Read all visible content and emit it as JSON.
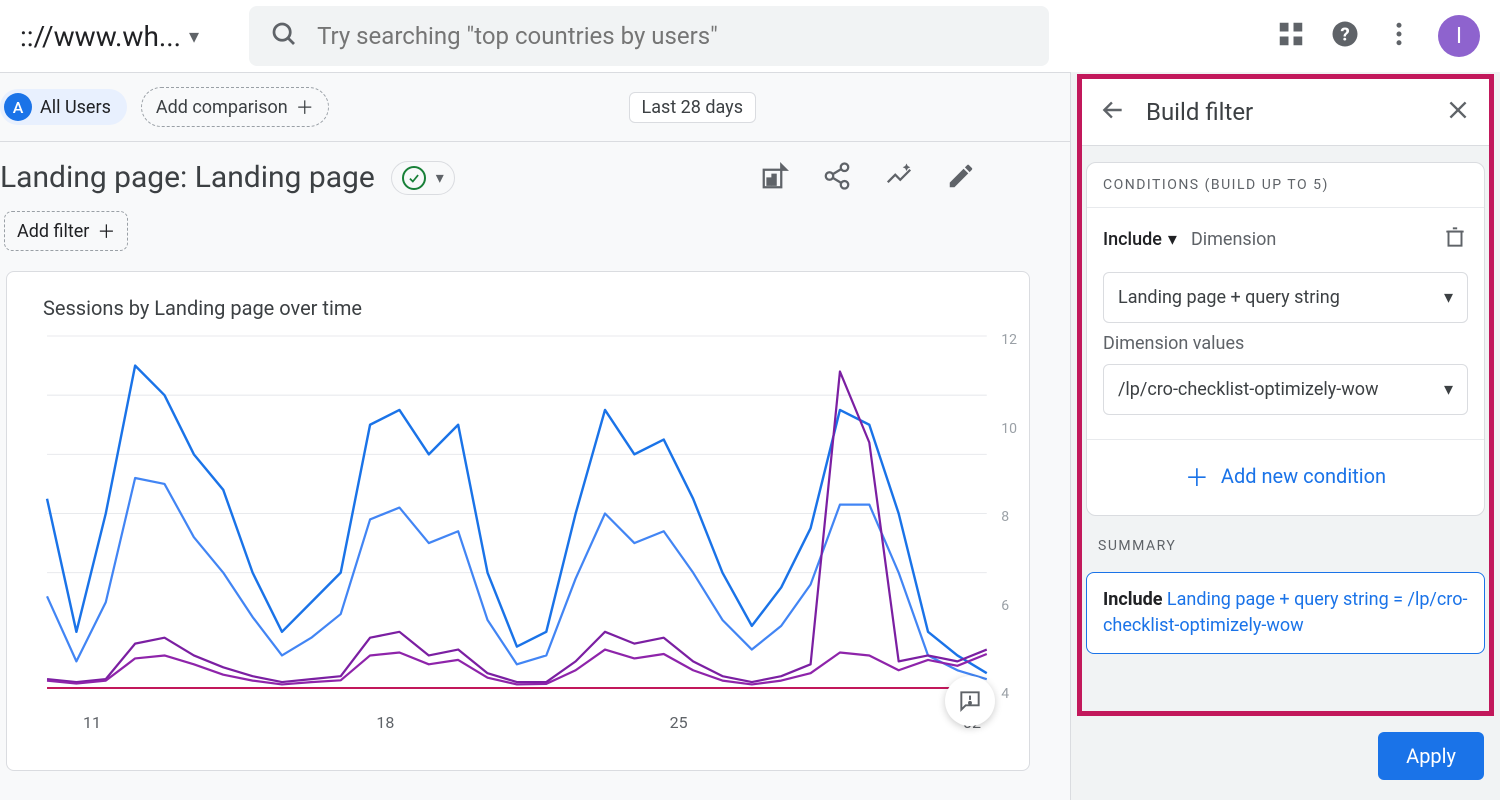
{
  "topbar": {
    "url": ":://www.wh...",
    "search_placeholder": "Try searching \"top countries by users\"",
    "avatar_letter": "I",
    "avatar_color": "#8e63ce"
  },
  "segment_bar": {
    "segment_letter": "A",
    "segment_label": "All Users",
    "add_comparison_label": "Add comparison",
    "date_label": "Last 28 days"
  },
  "page": {
    "title": "Landing page: Landing page",
    "add_filter_label": "Add filter"
  },
  "chart": {
    "title": "Sessions by Landing page over time",
    "type": "line",
    "x_labels": [
      "11",
      "18",
      "25",
      "02"
    ],
    "y_labels": [
      "12",
      "10",
      "8",
      "6",
      "4"
    ],
    "ylim": [
      0,
      12
    ],
    "grid_color": "#e8eaed",
    "background_color": "#ffffff",
    "series": [
      {
        "color": "#1a73e8",
        "stroke_width": 2.4,
        "values": [
          6.5,
          2,
          6,
          11,
          10,
          8,
          6.8,
          4,
          2,
          3,
          4,
          9,
          9.5,
          8,
          9,
          4,
          1.5,
          2,
          6,
          9.5,
          8,
          8.5,
          6.5,
          4,
          2.2,
          3.5,
          5.5,
          9.5,
          9,
          6,
          2,
          1.2,
          0.6
        ]
      },
      {
        "color": "#4285f4",
        "stroke_width": 2.2,
        "values": [
          3.2,
          1,
          3,
          7.2,
          7,
          5.2,
          4,
          2.5,
          1.2,
          1.8,
          2.6,
          5.8,
          6.2,
          5,
          5.4,
          2.4,
          0.9,
          1.2,
          3.8,
          6,
          5,
          5.4,
          4,
          2.4,
          1.4,
          2.2,
          3.6,
          6.3,
          6.3,
          4,
          1.2,
          0.7,
          0.4
        ]
      },
      {
        "color": "#7b1fa2",
        "stroke_width": 2.2,
        "values": [
          0.4,
          0.3,
          0.4,
          1.6,
          1.8,
          1.2,
          0.8,
          0.5,
          0.3,
          0.4,
          0.5,
          1.8,
          2.0,
          1.2,
          1.4,
          0.6,
          0.3,
          0.3,
          1.0,
          2.0,
          1.6,
          1.8,
          1.0,
          0.5,
          0.3,
          0.5,
          0.9,
          10.8,
          8.4,
          1.0,
          1.2,
          1.0,
          1.4
        ]
      },
      {
        "color": "#8e24aa",
        "stroke_width": 2.2,
        "values": [
          0.35,
          0.25,
          0.35,
          1.1,
          1.2,
          0.9,
          0.55,
          0.35,
          0.22,
          0.3,
          0.36,
          1.2,
          1.3,
          0.9,
          1.05,
          0.45,
          0.22,
          0.24,
          0.7,
          1.4,
          1.1,
          1.25,
          0.7,
          0.35,
          0.22,
          0.35,
          0.6,
          1.3,
          1.2,
          0.7,
          1.05,
          0.85,
          1.25
        ]
      },
      {
        "color": "#c2185b",
        "stroke_width": 2.0,
        "values": [
          0.1,
          0.1,
          0.1,
          0.1,
          0.1,
          0.1,
          0.1,
          0.1,
          0.1,
          0.1,
          0.1,
          0.1,
          0.1,
          0.1,
          0.1,
          0.1,
          0.1,
          0.1,
          0.1,
          0.1,
          0.1,
          0.1,
          0.1,
          0.1,
          0.1,
          0.1,
          0.1,
          0.1,
          0.1,
          0.1,
          0.1,
          0.1,
          0.1
        ]
      }
    ]
  },
  "panel": {
    "title": "Build filter",
    "conditions_header": "CONDITIONS (BUILD UP TO 5)",
    "include_label": "Include",
    "dimension_label": "Dimension",
    "dimension_field": "Landing page + query string",
    "values_label": "Dimension values",
    "values_field": "/lp/cro-checklist-optimizely-wow",
    "add_condition_label": "Add new condition",
    "summary_label": "SUMMARY",
    "summary_include": "Include",
    "summary_text": "Landing page + query string = /lp/cro-checklist-optimizely-wow",
    "apply_label": "Apply"
  },
  "colors": {
    "accent": "#1a73e8",
    "highlight_border": "#c2185b"
  }
}
